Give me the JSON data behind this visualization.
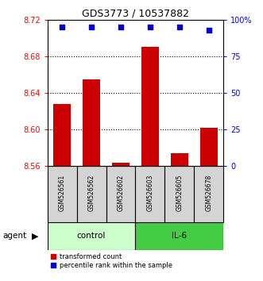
{
  "title": "GDS3773 / 10537882",
  "samples": [
    "GSM526561",
    "GSM526562",
    "GSM526602",
    "GSM526603",
    "GSM526605",
    "GSM526678"
  ],
  "groups": [
    "control",
    "control",
    "control",
    "IL-6",
    "IL-6",
    "IL-6"
  ],
  "bar_values": [
    8.628,
    8.655,
    8.563,
    8.69,
    8.574,
    8.602
  ],
  "percentile_values": [
    95,
    95,
    95,
    95,
    95,
    93
  ],
  "bar_color": "#cc0000",
  "dot_color": "#0000cc",
  "ylim_left": [
    8.56,
    8.72
  ],
  "ylim_right": [
    0,
    100
  ],
  "yticks_left": [
    8.56,
    8.6,
    8.64,
    8.68,
    8.72
  ],
  "yticks_right": [
    0,
    25,
    50,
    75,
    100
  ],
  "ytick_labels_left": [
    "8.56",
    "8.60",
    "8.64",
    "8.68",
    "8.72"
  ],
  "ytick_labels_right": [
    "0",
    "25",
    "50",
    "75",
    "100%"
  ],
  "control_color": "#ccffcc",
  "il6_color": "#44cc44",
  "bar_width": 0.6,
  "base_value": 8.56,
  "legend_bar_label": "transformed count",
  "legend_dot_label": "percentile rank within the sample",
  "grid_lines": [
    8.6,
    8.64,
    8.68
  ],
  "figsize": [
    3.31,
    3.54
  ],
  "dpi": 100
}
